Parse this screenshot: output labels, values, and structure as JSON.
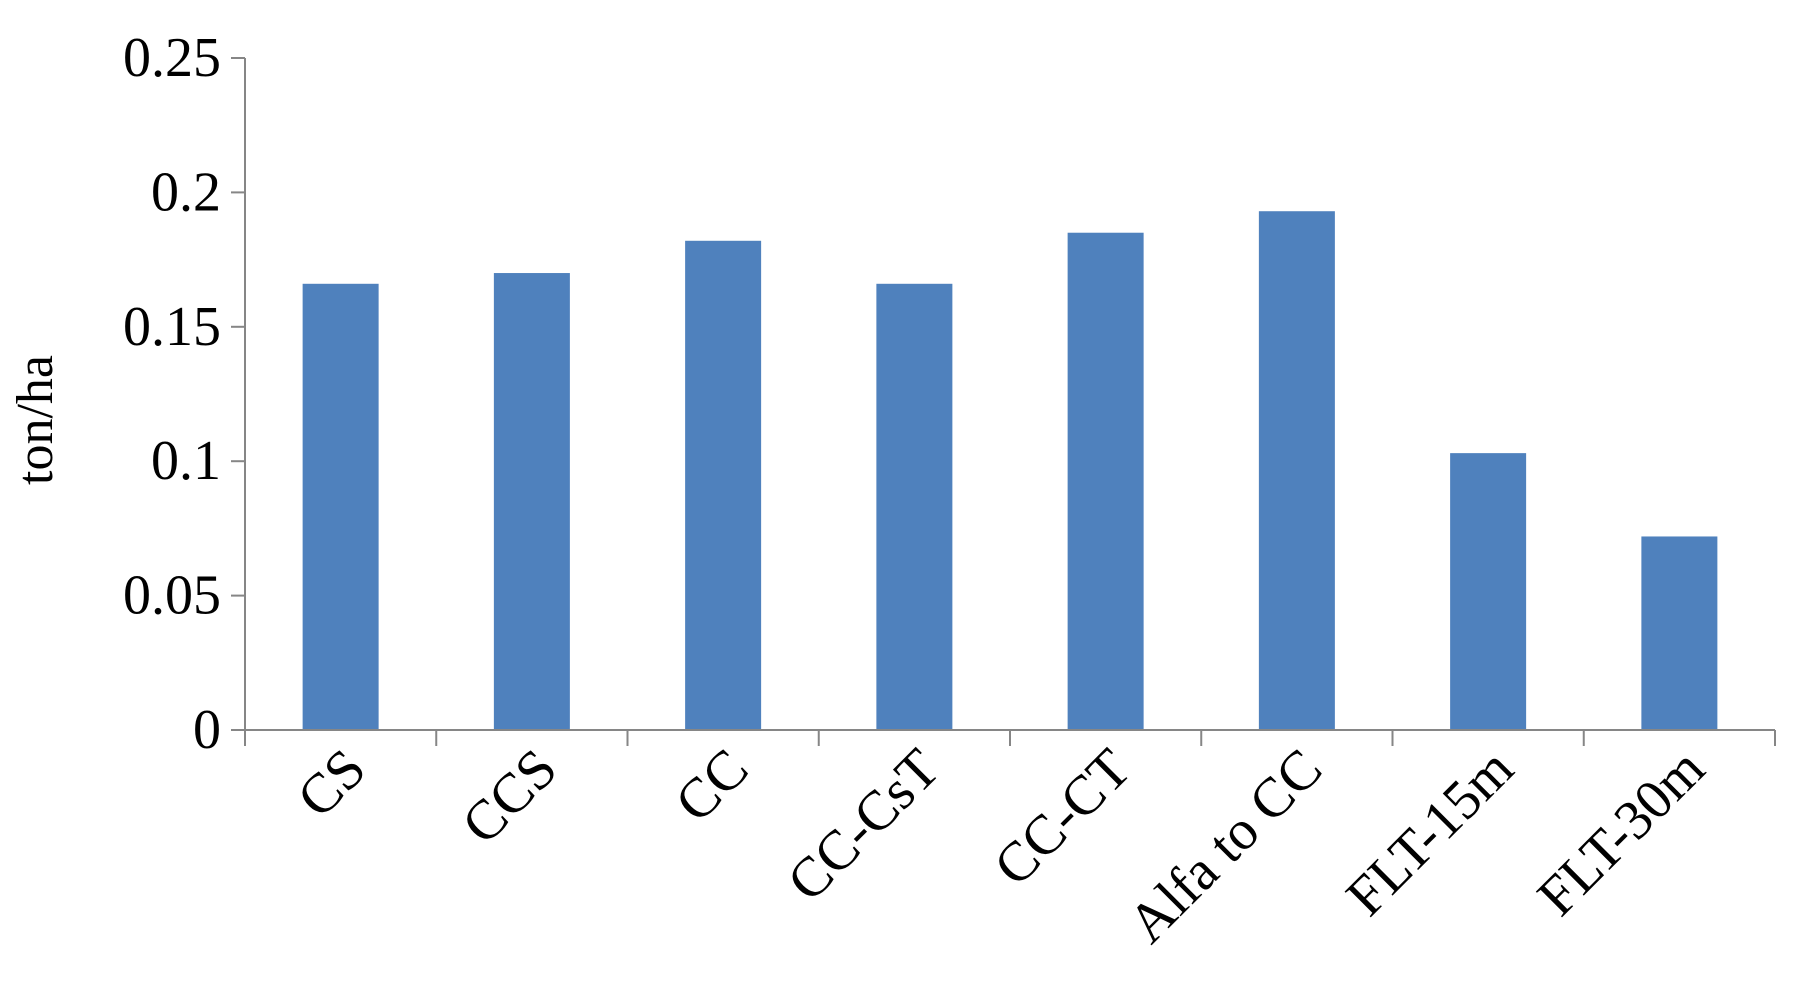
{
  "chart_data": {
    "type": "bar",
    "title": "",
    "xlabel": "",
    "ylabel": "ton/ha",
    "categories": [
      "CS",
      "CCS",
      "CC",
      "CC-CsT",
      "CC-CT",
      "Alfa to CC",
      "FLT-15m",
      "FLT-30m"
    ],
    "values": [
      0.166,
      0.17,
      0.182,
      0.166,
      0.185,
      0.193,
      0.103,
      0.072
    ],
    "ylim": [
      0,
      0.25
    ],
    "yticks": [
      "0",
      "0.05",
      "0.1",
      "0.15",
      "0.2",
      "0.25"
    ],
    "grid": false,
    "legend": "none",
    "colors": {
      "bar": "#4F81BD",
      "axis": "#868686"
    }
  }
}
